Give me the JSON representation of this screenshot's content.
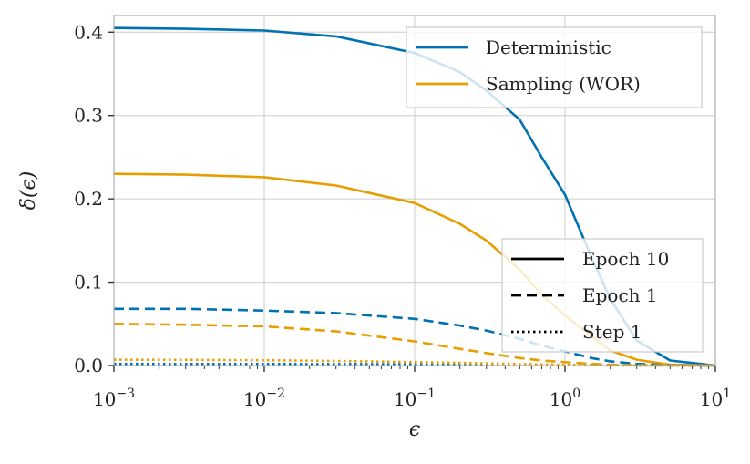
{
  "chart_data": {
    "type": "line",
    "xlabel": "ϵ",
    "ylabel": "δ(ϵ)",
    "xscale": "log",
    "xlim": [
      0.001,
      10
    ],
    "ylim": [
      0,
      0.42
    ],
    "grid": true,
    "x_ticks": [
      {
        "value": 0.001,
        "base": "10",
        "exp": "−3"
      },
      {
        "value": 0.01,
        "base": "10",
        "exp": "−2"
      },
      {
        "value": 0.1,
        "base": "10",
        "exp": "−1"
      },
      {
        "value": 1,
        "base": "10",
        "exp": "0"
      },
      {
        "value": 10,
        "base": "10",
        "exp": "1"
      }
    ],
    "y_ticks": [
      {
        "value": 0.0,
        "label": "0.0"
      },
      {
        "value": 0.1,
        "label": "0.1"
      },
      {
        "value": 0.2,
        "label": "0.2"
      },
      {
        "value": 0.3,
        "label": "0.3"
      },
      {
        "value": 0.4,
        "label": "0.4"
      }
    ],
    "colors": {
      "deterministic": "#0072b2",
      "sampling": "#e69f00",
      "legend_line": "#000000"
    },
    "legend_method": {
      "placement": "top-right",
      "entries": [
        {
          "label": "Deterministic",
          "color": "#0072b2"
        },
        {
          "label": "Sampling (WOR)",
          "color": "#e69f00"
        }
      ]
    },
    "legend_epoch": {
      "placement": "lower-right",
      "entries": [
        {
          "label": "Epoch 10",
          "dash": "solid"
        },
        {
          "label": "Epoch 1",
          "dash": "dashed"
        },
        {
          "label": "Step 1",
          "dash": "dotted"
        }
      ]
    },
    "series": [
      {
        "method": "Deterministic",
        "style": "Epoch 10",
        "color": "#0072b2",
        "dash": "solid",
        "x": [
          0.001,
          0.003,
          0.01,
          0.03,
          0.1,
          0.2,
          0.3,
          0.5,
          0.7,
          1,
          1.5,
          2,
          3,
          5,
          10
        ],
        "y": [
          0.405,
          0.404,
          0.402,
          0.395,
          0.375,
          0.352,
          0.33,
          0.295,
          0.25,
          0.205,
          0.13,
          0.08,
          0.03,
          0.006,
          0.0
        ]
      },
      {
        "method": "Sampling (WOR)",
        "style": "Epoch 10",
        "color": "#e69f00",
        "dash": "solid",
        "x": [
          0.001,
          0.003,
          0.01,
          0.03,
          0.1,
          0.2,
          0.3,
          0.5,
          0.7,
          1,
          1.5,
          2,
          3,
          5,
          10
        ],
        "y": [
          0.23,
          0.229,
          0.226,
          0.216,
          0.195,
          0.17,
          0.15,
          0.115,
          0.085,
          0.06,
          0.035,
          0.018,
          0.007,
          0.001,
          0.0
        ]
      },
      {
        "method": "Deterministic",
        "style": "Epoch 1",
        "color": "#0072b2",
        "dash": "dashed",
        "x": [
          0.001,
          0.003,
          0.01,
          0.03,
          0.1,
          0.2,
          0.3,
          0.5,
          0.7,
          1,
          1.5,
          2,
          3,
          5,
          10
        ],
        "y": [
          0.068,
          0.068,
          0.066,
          0.063,
          0.056,
          0.048,
          0.042,
          0.032,
          0.024,
          0.017,
          0.009,
          0.005,
          0.002,
          0.0003,
          0.0
        ]
      },
      {
        "method": "Sampling (WOR)",
        "style": "Epoch 1",
        "color": "#e69f00",
        "dash": "dashed",
        "x": [
          0.001,
          0.003,
          0.01,
          0.03,
          0.1,
          0.2,
          0.3,
          0.5,
          0.7,
          1,
          1.5,
          2,
          3,
          5,
          10
        ],
        "y": [
          0.05,
          0.049,
          0.047,
          0.041,
          0.029,
          0.02,
          0.015,
          0.009,
          0.006,
          0.004,
          0.002,
          0.001,
          0.0003,
          0.0,
          0.0
        ]
      },
      {
        "method": "Deterministic",
        "style": "Step 1",
        "color": "#0072b2",
        "dash": "dotted",
        "x": [
          0.001,
          0.01,
          0.1,
          0.3,
          1,
          3,
          10
        ],
        "y": [
          0.002,
          0.0019,
          0.0015,
          0.001,
          0.0004,
          0.0001,
          0.0
        ]
      },
      {
        "method": "Sampling (WOR)",
        "style": "Step 1",
        "color": "#e69f00",
        "dash": "dotted",
        "x": [
          0.001,
          0.003,
          0.01,
          0.03,
          0.1,
          0.2,
          0.3,
          0.5,
          1,
          2,
          10
        ],
        "y": [
          0.007,
          0.0068,
          0.0063,
          0.0055,
          0.0042,
          0.0032,
          0.0025,
          0.0018,
          0.0009,
          0.0003,
          0.0
        ]
      }
    ]
  }
}
